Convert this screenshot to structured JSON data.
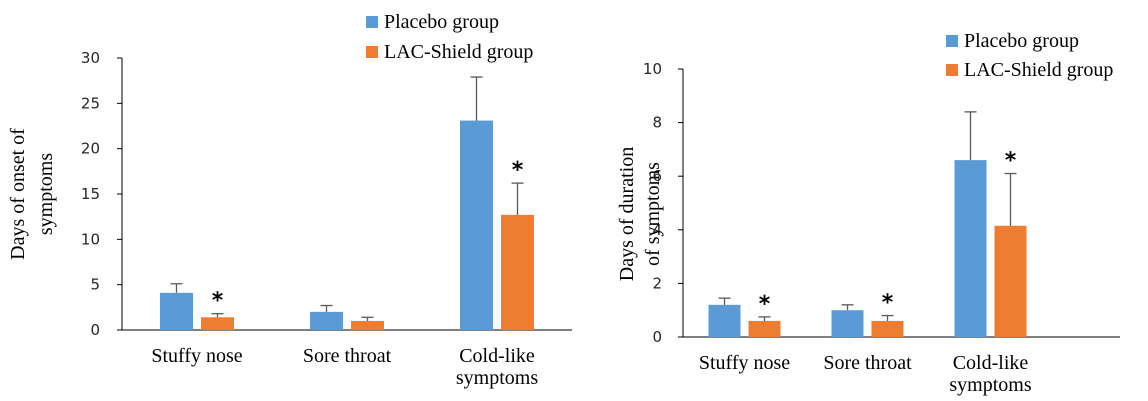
{
  "chart_data": [
    {
      "type": "bar",
      "title": "",
      "xlabel": "",
      "ylabel": "Days of onset of symptoms",
      "ylabel_lines": [
        "Days of onset of",
        "symptoms"
      ],
      "ylim": [
        0,
        30
      ],
      "yticks": [
        0,
        5,
        10,
        15,
        20,
        25,
        30
      ],
      "grid": false,
      "legend_position": "top-right",
      "categories": [
        "Stuffy nose",
        "Sore throat",
        "Cold-like symptoms"
      ],
      "category_lines": [
        [
          "Stuffy nose"
        ],
        [
          "Sore throat"
        ],
        [
          "Cold-like",
          "symptoms"
        ]
      ],
      "series": [
        {
          "name": "Placebo group",
          "color": "#5b9bd5",
          "values": [
            4.1,
            2.0,
            23.1
          ],
          "errors": [
            1.0,
            0.7,
            4.8
          ],
          "markers": [
            "",
            "",
            ""
          ]
        },
        {
          "name": "LAC-Shield group",
          "color": "#ed7d31",
          "values": [
            1.4,
            1.0,
            12.7
          ],
          "errors": [
            0.4,
            0.4,
            3.5
          ],
          "markers": [
            "*",
            "",
            "*"
          ]
        }
      ]
    },
    {
      "type": "bar",
      "title": "",
      "xlabel": "",
      "ylabel": "Days of duration of symptoms",
      "ylabel_lines": [
        "Days of duration",
        "of symptoms"
      ],
      "ylim": [
        0,
        10
      ],
      "yticks": [
        0,
        2,
        4,
        6,
        8,
        10
      ],
      "grid": false,
      "legend_position": "top-right",
      "categories": [
        "Stuffy nose",
        "Sore throat",
        "Cold-like symptoms"
      ],
      "category_lines": [
        [
          "Stuffy nose"
        ],
        [
          "Sore throat"
        ],
        [
          "Cold-like",
          "symptoms"
        ]
      ],
      "series": [
        {
          "name": "Placebo group",
          "color": "#5b9bd5",
          "values": [
            1.2,
            1.0,
            6.6
          ],
          "errors": [
            0.25,
            0.2,
            1.8
          ],
          "markers": [
            "",
            "",
            ""
          ]
        },
        {
          "name": "LAC-Shield group",
          "color": "#ed7d31",
          "values": [
            0.6,
            0.6,
            4.15
          ],
          "errors": [
            0.15,
            0.2,
            1.95
          ],
          "markers": [
            "*",
            "*",
            "*"
          ]
        }
      ]
    }
  ]
}
